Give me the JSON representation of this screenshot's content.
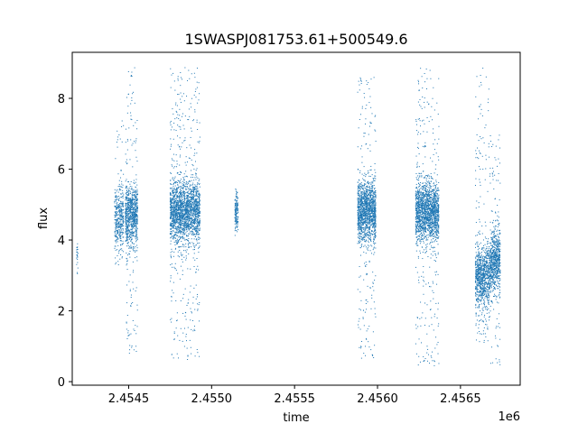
{
  "chart_data": {
    "type": "scatter",
    "title": "1SWASPJ081753.61+500549.6",
    "xlabel": "time",
    "ylabel": "flux",
    "x_offset_label": "1e6",
    "xlim": [
      2454160,
      2456860
    ],
    "ylim": [
      -0.1,
      9.3
    ],
    "x_ticks": [
      2454500,
      2455000,
      2455500,
      2456000,
      2456500
    ],
    "x_tick_labels": [
      "2.4545",
      "2.4550",
      "2.4555",
      "2.4560",
      "2.4565"
    ],
    "y_ticks": [
      0,
      2,
      4,
      6,
      8
    ],
    "y_tick_labels": [
      "0",
      "2",
      "4",
      "6",
      "8"
    ],
    "grid": false,
    "marker_color": "#1f77b4",
    "clusters": [
      {
        "x_start": 2454185,
        "x_end": 2454195,
        "median_flux": 3.6,
        "flux_min": 2.6,
        "flux_max": 4.2,
        "n_points": 25
      },
      {
        "x_start": 2454415,
        "x_end": 2454470,
        "median_flux": 4.6,
        "flux_min": 3.3,
        "flux_max": 7.5,
        "n_points": 400
      },
      {
        "x_start": 2454480,
        "x_end": 2454555,
        "median_flux": 4.7,
        "flux_min": 0.8,
        "flux_max": 8.9,
        "n_points": 900
      },
      {
        "x_start": 2454750,
        "x_end": 2454930,
        "median_flux": 4.8,
        "flux_min": 0.6,
        "flux_max": 8.9,
        "n_points": 2200
      },
      {
        "x_start": 2455140,
        "x_end": 2455160,
        "median_flux": 4.8,
        "flux_min": 4.1,
        "flux_max": 5.6,
        "n_points": 150
      },
      {
        "x_start": 2455880,
        "x_end": 2455990,
        "median_flux": 4.8,
        "flux_min": 0.5,
        "flux_max": 8.6,
        "n_points": 1500
      },
      {
        "x_start": 2456230,
        "x_end": 2456370,
        "median_flux": 4.8,
        "flux_min": 0.4,
        "flux_max": 8.9,
        "n_points": 1800
      },
      {
        "x_start": 2456590,
        "x_end": 2456680,
        "median_flux": 3.0,
        "flux_min": 1.1,
        "flux_max": 8.9,
        "n_points": 1000
      },
      {
        "x_start": 2456680,
        "x_end": 2456740,
        "median_flux": 3.4,
        "flux_min": 0.4,
        "flux_max": 7.0,
        "n_points": 700
      }
    ]
  }
}
